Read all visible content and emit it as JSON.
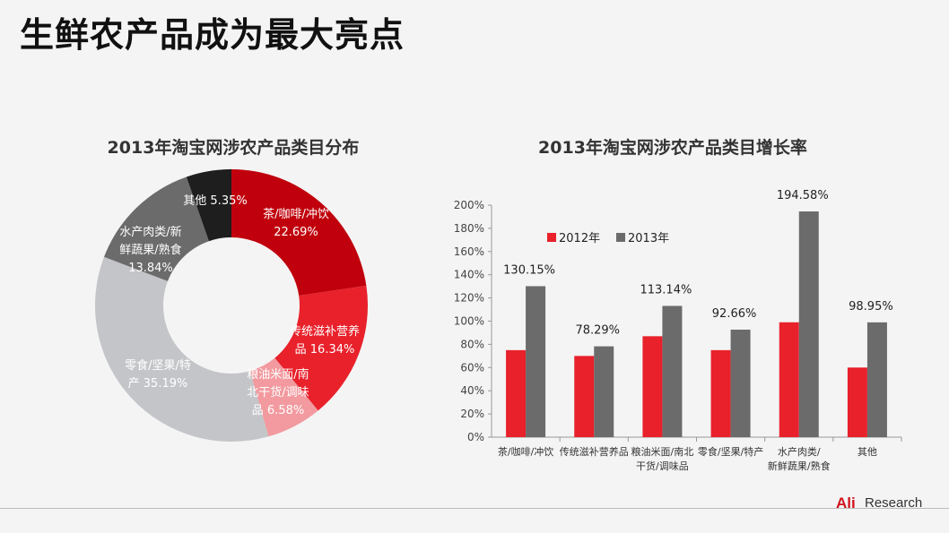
{
  "slide": {
    "title": "生鲜农产品成为最大亮点"
  },
  "logo": {
    "ali": "Ali",
    "research": "Research"
  },
  "chart_data": [
    {
      "type": "pie",
      "title": "2013年淘宝网涉农产品类目分布",
      "donut": true,
      "slices": [
        {
          "label_lines": [
            "茶/咖啡/冲饮",
            "22.69%"
          ],
          "value": 22.69,
          "color": "#c0000c"
        },
        {
          "label_lines": [
            "传统滋补营养",
            "品 16.34%"
          ],
          "value": 16.34,
          "color": "#e8212b"
        },
        {
          "label_lines": [
            "粮油米面/南",
            "北干货/调味",
            "品 6.58%"
          ],
          "value": 6.58,
          "color": "#f29a9f"
        },
        {
          "label_lines": [
            "零食/坚果/特",
            "产 35.19%"
          ],
          "value": 35.19,
          "color": "#c4c5c8"
        },
        {
          "label_lines": [
            "水产肉类/新",
            "鲜蔬果/熟食",
            "13.84%"
          ],
          "value": 13.84,
          "color": "#6b6b6b"
        },
        {
          "label_lines": [
            "其他 5.35%"
          ],
          "value": 5.35,
          "color": "#1e1e1e"
        }
      ]
    },
    {
      "type": "bar",
      "title": "2013年淘宝网涉农产品类目增长率",
      "categories": [
        [
          "茶/咖啡/冲饮"
        ],
        [
          "传统滋补营养品"
        ],
        [
          "粮油米面/南北",
          "干货/调味品"
        ],
        [
          "零食/坚果/特产"
        ],
        [
          "水产肉类/",
          "新鲜蔬果/熟食"
        ],
        [
          "其他"
        ]
      ],
      "series": [
        {
          "name": "2012年",
          "color": "#e8212b",
          "values": [
            75,
            70,
            87,
            75,
            99,
            60
          ]
        },
        {
          "name": "2013年",
          "color": "#6b6b6b",
          "values": [
            130.15,
            78.29,
            113.14,
            92.66,
            194.58,
            98.95
          ]
        }
      ],
      "data_labels": [
        "130.15%",
        "78.29%",
        "113.14%",
        "92.66%",
        "194.58%",
        "98.95%"
      ],
      "yticks": [
        "0%",
        "20%",
        "40%",
        "60%",
        "80%",
        "100%",
        "120%",
        "140%",
        "160%",
        "180%",
        "200%"
      ],
      "ylim": [
        0,
        200
      ],
      "legend_position": "top-left",
      "grid": false
    }
  ]
}
